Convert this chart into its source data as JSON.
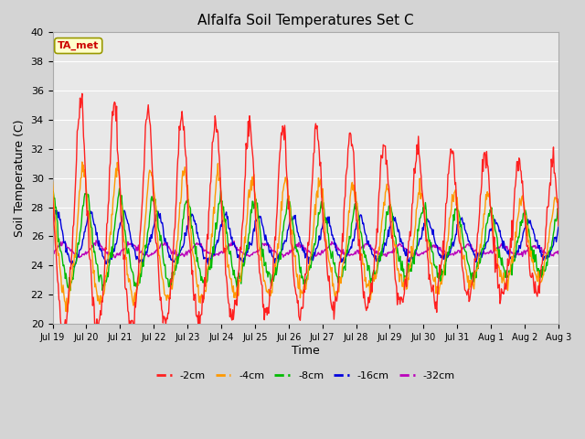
{
  "title": "Alfalfa Soil Temperatures Set C",
  "xlabel": "Time",
  "ylabel": "Soil Temperature (C)",
  "ylim": [
    20,
    40
  ],
  "yticks": [
    20,
    22,
    24,
    26,
    28,
    30,
    32,
    34,
    36,
    38,
    40
  ],
  "plot_bg_color": "#e8e8e8",
  "fig_bg_color": "#d4d4d4",
  "annotation_text": "TA_met",
  "annotation_color": "#cc0000",
  "annotation_bg": "#ffffcc",
  "annotation_edge": "#999900",
  "series_colors": {
    "-2cm": "#ff2020",
    "-4cm": "#ff9900",
    "-8cm": "#00bb00",
    "-16cm": "#0000dd",
    "-32cm": "#bb00bb"
  },
  "x_tick_labels": [
    "Jul 19",
    "Jul 20",
    "Jul 21",
    "Jul 22",
    "Jul 23",
    "Jul 24",
    "Jul 25",
    "Jul 26",
    "Jul 27",
    "Jul 28",
    "Jul 29",
    "Jul 30",
    "Jul 31",
    "Aug 1",
    "Aug 2",
    "Aug 3"
  ],
  "figsize": [
    6.4,
    4.8
  ],
  "dpi": 100
}
